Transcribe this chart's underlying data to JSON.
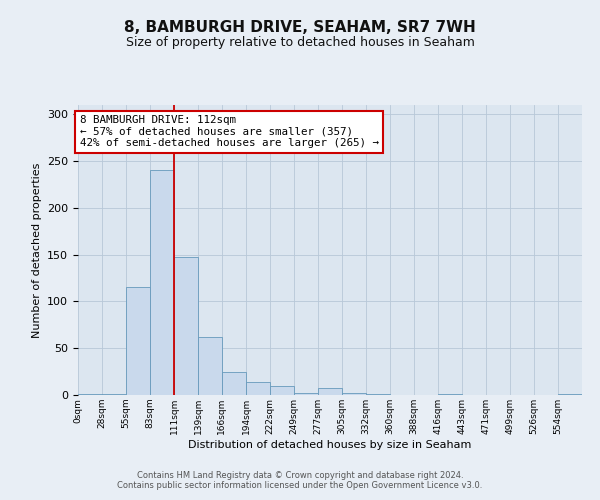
{
  "title": "8, BAMBURGH DRIVE, SEAHAM, SR7 7WH",
  "subtitle": "Size of property relative to detached houses in Seaham",
  "xlabel": "Distribution of detached houses by size in Seaham",
  "ylabel": "Number of detached properties",
  "bar_color": "#c9d9ec",
  "bar_edge_color": "#6699bb",
  "background_color": "#e8eef5",
  "plot_bg_color": "#dce6f0",
  "grid_color": "#b8c8d8",
  "bin_labels": [
    "0sqm",
    "28sqm",
    "55sqm",
    "83sqm",
    "111sqm",
    "139sqm",
    "166sqm",
    "194sqm",
    "222sqm",
    "249sqm",
    "277sqm",
    "305sqm",
    "332sqm",
    "360sqm",
    "388sqm",
    "416sqm",
    "443sqm",
    "471sqm",
    "499sqm",
    "526sqm",
    "554sqm"
  ],
  "bin_edges": [
    0,
    28,
    55,
    83,
    111,
    139,
    166,
    194,
    222,
    249,
    277,
    305,
    332,
    360,
    388,
    416,
    443,
    471,
    499,
    526,
    554
  ],
  "bar_heights": [
    1,
    1,
    115,
    240,
    148,
    62,
    25,
    14,
    10,
    2,
    8,
    2,
    1,
    0,
    0,
    1,
    0,
    0,
    0,
    0,
    1
  ],
  "ylim": [
    0,
    310
  ],
  "yticks": [
    0,
    50,
    100,
    150,
    200,
    250,
    300
  ],
  "property_line_x": 111,
  "property_line_color": "#cc0000",
  "annotation_line1": "8 BAMBURGH DRIVE: 112sqm",
  "annotation_line2": "← 57% of detached houses are smaller (357)",
  "annotation_line3": "42% of semi-detached houses are larger (265) →",
  "annotation_box_color": "#cc0000",
  "footer_line1": "Contains HM Land Registry data © Crown copyright and database right 2024.",
  "footer_line2": "Contains public sector information licensed under the Open Government Licence v3.0."
}
